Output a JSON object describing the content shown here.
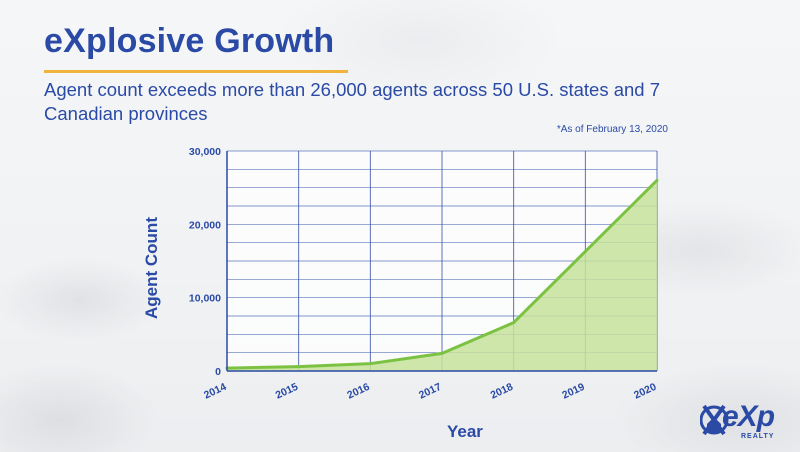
{
  "slide": {
    "title": "eXplosive Growth",
    "subtitle": "Agent count exceeds more than 26,000 agents across 50 U.S. states and 7 Canadian provinces",
    "footnote": "*As of February 13, 2020"
  },
  "brand": {
    "logo_text": "eXp",
    "logo_sub": "REALTY",
    "primary_color": "#2a4aa6",
    "accent_color": "#f2b33a",
    "line_color": "#7cc242",
    "fill_color": "#c6e29b"
  },
  "chart_data": {
    "type": "area",
    "x": [
      "2014",
      "2015",
      "2016",
      "2017",
      "2018",
      "2019",
      "2020"
    ],
    "values": [
      400,
      600,
      1000,
      2400,
      6600,
      16300,
      26000
    ],
    "xlabel": "Year",
    "ylabel": "Agent Count",
    "ylim": [
      0,
      30000
    ],
    "y_ticks": [
      0,
      10000,
      20000,
      30000
    ],
    "y_tick_labels": [
      "0",
      "10,000",
      "20,000",
      "30,000"
    ],
    "grid": true
  }
}
